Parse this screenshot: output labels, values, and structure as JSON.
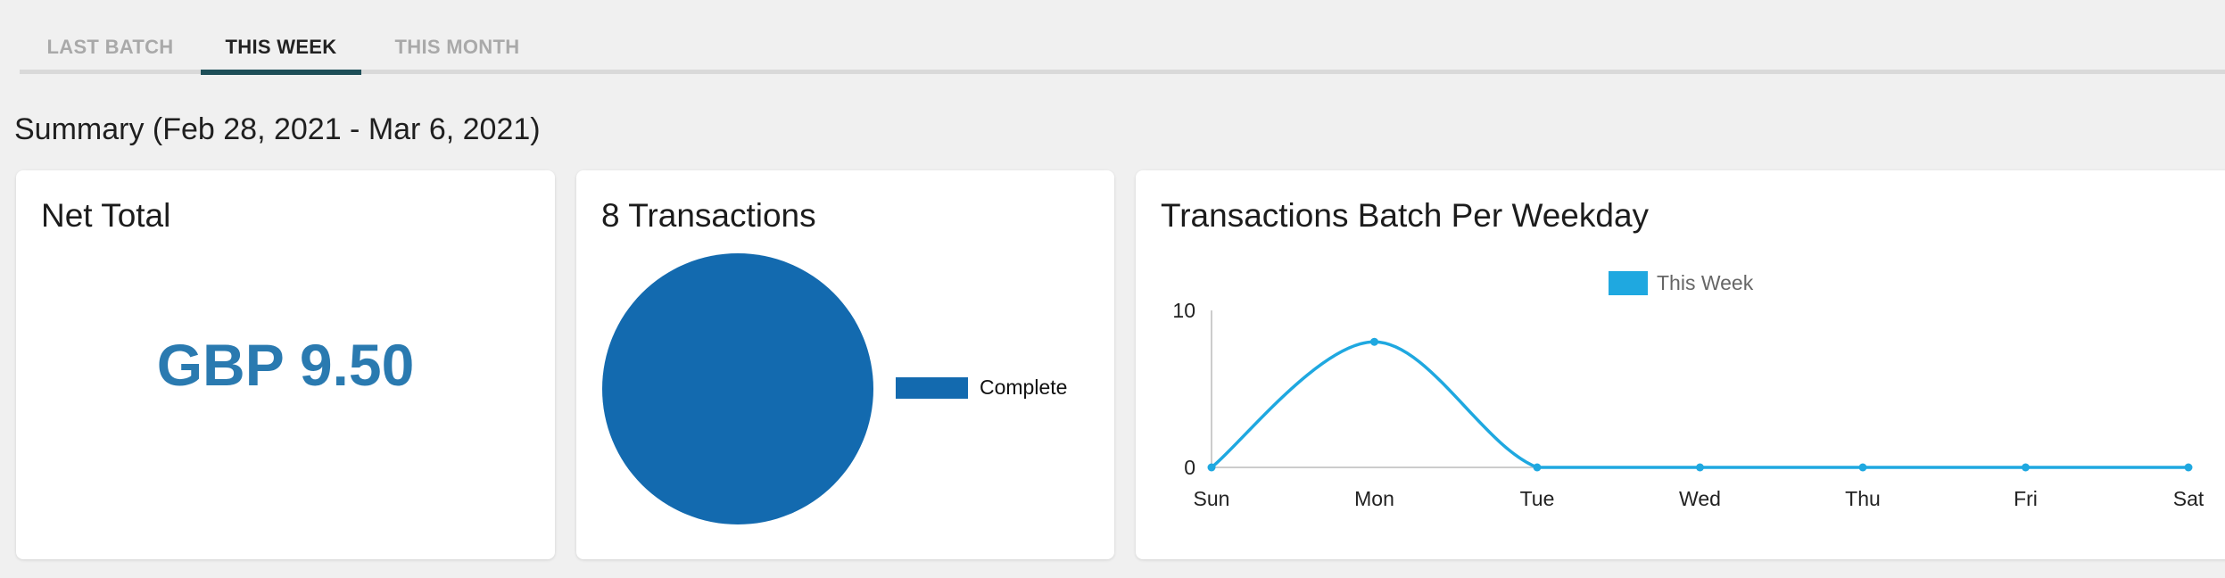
{
  "tabs": [
    {
      "label": "LAST BATCH",
      "active": false
    },
    {
      "label": "THIS WEEK",
      "active": true
    },
    {
      "label": "THIS MONTH",
      "active": false
    }
  ],
  "summary": {
    "title": "Summary (Feb 28, 2021 - Mar 6, 2021)"
  },
  "net_total_card": {
    "title": "Net Total",
    "value": "GBP 9.50"
  },
  "transactions_card": {
    "title": "8 Transactions"
  },
  "weekday_card": {
    "title": "Transactions Batch Per Weekday"
  },
  "colors": {
    "accent": "#2a7ab0",
    "pie_fill": "#136aaf",
    "line": "#1fa8e0",
    "tab_indicator": "#1d4e58"
  },
  "chart_data": [
    {
      "type": "pie",
      "title": "",
      "labels": [
        "Complete"
      ],
      "values": [
        8
      ],
      "legend": "right",
      "colors": [
        "#136aaf"
      ]
    },
    {
      "type": "line",
      "title": "",
      "categories": [
        "Sun",
        "Mon",
        "Tue",
        "Wed",
        "Thu",
        "Fri",
        "Sat"
      ],
      "series": [
        {
          "name": "This Week",
          "values": [
            0,
            8,
            0,
            0,
            0,
            0,
            0
          ],
          "color": "#1fa8e0"
        }
      ],
      "yticks": [
        0,
        10
      ],
      "ylim": [
        0,
        10
      ],
      "legend": "top-center",
      "grid": false
    }
  ]
}
